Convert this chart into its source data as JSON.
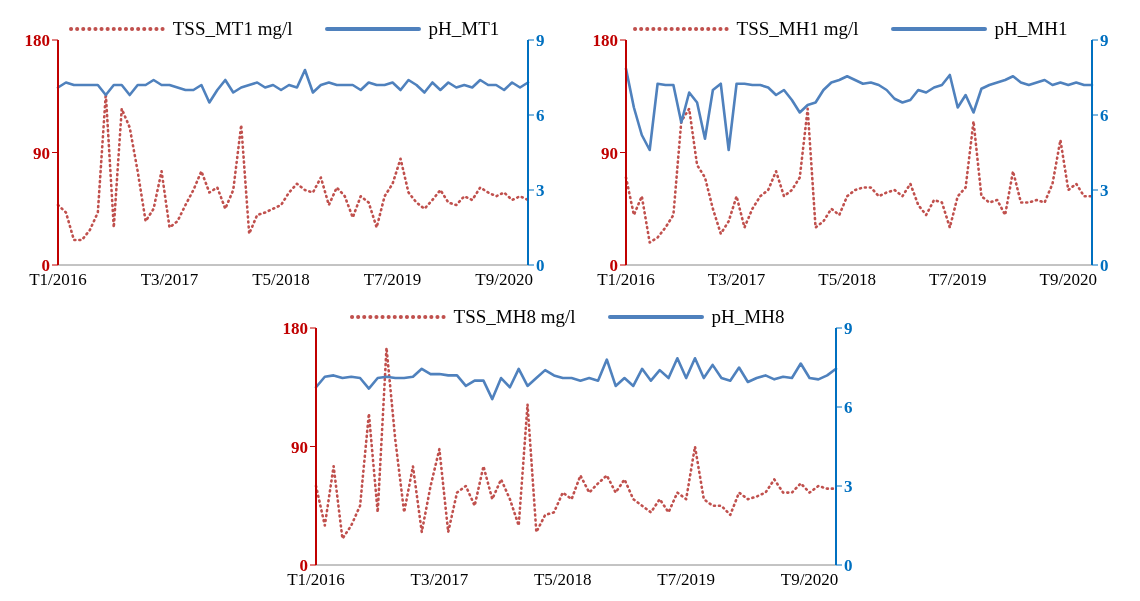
{
  "chart_data": [
    {
      "type": "line",
      "categories": [
        "T1/2016",
        null,
        null,
        null,
        null,
        null,
        null,
        null,
        null,
        null,
        null,
        null,
        null,
        null,
        "T3/2017",
        null,
        null,
        null,
        null,
        null,
        null,
        null,
        null,
        null,
        null,
        null,
        null,
        null,
        "T5/2018",
        null,
        null,
        null,
        null,
        null,
        null,
        null,
        null,
        null,
        null,
        null,
        null,
        null,
        "T7/2019",
        null,
        null,
        null,
        null,
        null,
        null,
        null,
        null,
        null,
        null,
        null,
        null,
        null,
        "T9/2020",
        null,
        null,
        null
      ],
      "series": [
        {
          "name": "TSS_MT1 mg/l",
          "color": "#c0504d",
          "line_style": "dotted",
          "values": [
            48,
            42,
            20,
            20,
            28,
            42,
            137,
            30,
            125,
            110,
            75,
            35,
            45,
            75,
            30,
            35,
            48,
            60,
            75,
            58,
            62,
            45,
            60,
            112,
            25,
            40,
            42,
            45,
            48,
            58,
            65,
            60,
            58,
            70,
            48,
            62,
            55,
            38,
            55,
            50,
            30,
            55,
            65,
            85,
            58,
            50,
            45,
            52,
            60,
            50,
            48,
            55,
            52,
            62,
            58,
            55,
            58,
            52,
            55,
            52
          ]
        },
        {
          "name": "pH_MT1",
          "color": "#4f81bd",
          "line_style": "solid",
          "axis": "y2",
          "values": [
            7.1,
            7.3,
            7.2,
            7.2,
            7.2,
            7.2,
            6.8,
            7.2,
            7.2,
            6.8,
            7.2,
            7.2,
            7.4,
            7.2,
            7.2,
            7.1,
            7.0,
            7.0,
            7.2,
            6.5,
            7.0,
            7.4,
            6.9,
            7.1,
            7.2,
            7.3,
            7.1,
            7.2,
            7.0,
            7.2,
            7.1,
            7.8,
            6.9,
            7.2,
            7.3,
            7.2,
            7.2,
            7.2,
            7.0,
            7.3,
            7.2,
            7.2,
            7.3,
            7.0,
            7.4,
            7.2,
            6.9,
            7.3,
            7.0,
            7.3,
            7.1,
            7.2,
            7.1,
            7.4,
            7.2,
            7.2,
            7.0,
            7.3,
            7.1,
            7.3
          ]
        }
      ],
      "ylim": [
        0,
        180
      ],
      "yticks": [
        0,
        90,
        180
      ],
      "y2lim": [
        0,
        9
      ],
      "y2ticks": [
        0,
        3,
        6,
        9
      ],
      "legend": "top"
    },
    {
      "type": "line",
      "categories": [
        "T1/2016",
        null,
        null,
        null,
        null,
        null,
        null,
        null,
        null,
        null,
        null,
        null,
        null,
        null,
        "T3/2017",
        null,
        null,
        null,
        null,
        null,
        null,
        null,
        null,
        null,
        null,
        null,
        null,
        null,
        "T5/2018",
        null,
        null,
        null,
        null,
        null,
        null,
        null,
        null,
        null,
        null,
        null,
        null,
        null,
        "T7/2019",
        null,
        null,
        null,
        null,
        null,
        null,
        null,
        null,
        null,
        null,
        null,
        null,
        null,
        "T9/2020",
        null,
        null,
        null
      ],
      "series": [
        {
          "name": "TSS_MH1 mg/l",
          "color": "#c0504d",
          "line_style": "dotted",
          "values": [
            70,
            40,
            55,
            18,
            22,
            30,
            40,
            115,
            125,
            80,
            70,
            45,
            25,
            35,
            55,
            30,
            45,
            55,
            60,
            75,
            55,
            60,
            70,
            125,
            30,
            35,
            45,
            40,
            55,
            60,
            62,
            62,
            55,
            58,
            60,
            55,
            65,
            48,
            40,
            52,
            50,
            30,
            55,
            62,
            115,
            55,
            50,
            52,
            40,
            75,
            50,
            50,
            52,
            50,
            65,
            100,
            60,
            65,
            55,
            55
          ]
        },
        {
          "name": "pH_MH1",
          "color": "#4f81bd",
          "line_style": "solid",
          "axis": "y2",
          "values": [
            7.85,
            6.3,
            5.2,
            4.6,
            7.25,
            7.2,
            7.2,
            5.7,
            6.9,
            6.5,
            5.05,
            7.0,
            7.25,
            4.6,
            7.25,
            7.25,
            7.2,
            7.2,
            7.1,
            6.8,
            7.0,
            6.6,
            6.1,
            6.4,
            6.5,
            7.0,
            7.3,
            7.4,
            7.55,
            7.4,
            7.25,
            7.3,
            7.2,
            7.0,
            6.65,
            6.5,
            6.6,
            7.0,
            6.9,
            7.1,
            7.2,
            7.6,
            6.3,
            6.8,
            6.1,
            7.05,
            7.2,
            7.3,
            7.4,
            7.55,
            7.3,
            7.2,
            7.3,
            7.4,
            7.2,
            7.3,
            7.2,
            7.3,
            7.2,
            7.2
          ]
        }
      ],
      "ylim": [
        0,
        180
      ],
      "yticks": [
        0,
        90,
        180
      ],
      "y2lim": [
        0,
        9
      ],
      "y2ticks": [
        0,
        3,
        6,
        9
      ],
      "legend": "top"
    },
    {
      "type": "line",
      "categories": [
        "T1/2016",
        null,
        null,
        null,
        null,
        null,
        null,
        null,
        null,
        null,
        null,
        null,
        null,
        null,
        "T3/2017",
        null,
        null,
        null,
        null,
        null,
        null,
        null,
        null,
        null,
        null,
        null,
        null,
        null,
        "T5/2018",
        null,
        null,
        null,
        null,
        null,
        null,
        null,
        null,
        null,
        null,
        null,
        null,
        null,
        "T7/2019",
        null,
        null,
        null,
        null,
        null,
        null,
        null,
        null,
        null,
        null,
        null,
        null,
        null,
        "T9/2020",
        null,
        null,
        null
      ],
      "series": [
        {
          "name": "TSS_MH8 mg/l",
          "color": "#c0504d",
          "line_style": "dotted",
          "values": [
            60,
            30,
            75,
            20,
            30,
            45,
            115,
            40,
            165,
            95,
            40,
            75,
            25,
            60,
            88,
            25,
            55,
            60,
            45,
            75,
            50,
            65,
            50,
            30,
            122,
            25,
            38,
            40,
            55,
            50,
            68,
            55,
            62,
            68,
            55,
            65,
            50,
            45,
            40,
            50,
            40,
            55,
            50,
            90,
            50,
            45,
            45,
            38,
            55,
            50,
            52,
            55,
            65,
            55,
            55,
            62,
            55,
            60,
            58,
            58
          ]
        },
        {
          "name": "pH_MH8",
          "color": "#4f81bd",
          "line_style": "solid",
          "axis": "y2",
          "values": [
            6.75,
            7.15,
            7.2,
            7.1,
            7.15,
            7.1,
            6.7,
            7.1,
            7.15,
            7.1,
            7.1,
            7.15,
            7.45,
            7.25,
            7.25,
            7.2,
            7.2,
            6.8,
            7.0,
            7.0,
            6.3,
            7.1,
            6.75,
            7.45,
            6.8,
            7.1,
            7.4,
            7.2,
            7.1,
            7.1,
            7.0,
            7.1,
            7.0,
            7.8,
            6.8,
            7.1,
            6.8,
            7.45,
            7.0,
            7.4,
            7.1,
            7.85,
            7.1,
            7.85,
            7.1,
            7.6,
            7.1,
            7.0,
            7.5,
            6.95,
            7.1,
            7.2,
            7.05,
            7.15,
            7.1,
            7.65,
            7.1,
            7.05,
            7.2,
            7.45
          ]
        }
      ],
      "ylim": [
        0,
        180
      ],
      "yticks": [
        0,
        90,
        180
      ],
      "y2lim": [
        0,
        9
      ],
      "y2ticks": [
        0,
        3,
        6,
        9
      ],
      "legend": "top"
    }
  ]
}
